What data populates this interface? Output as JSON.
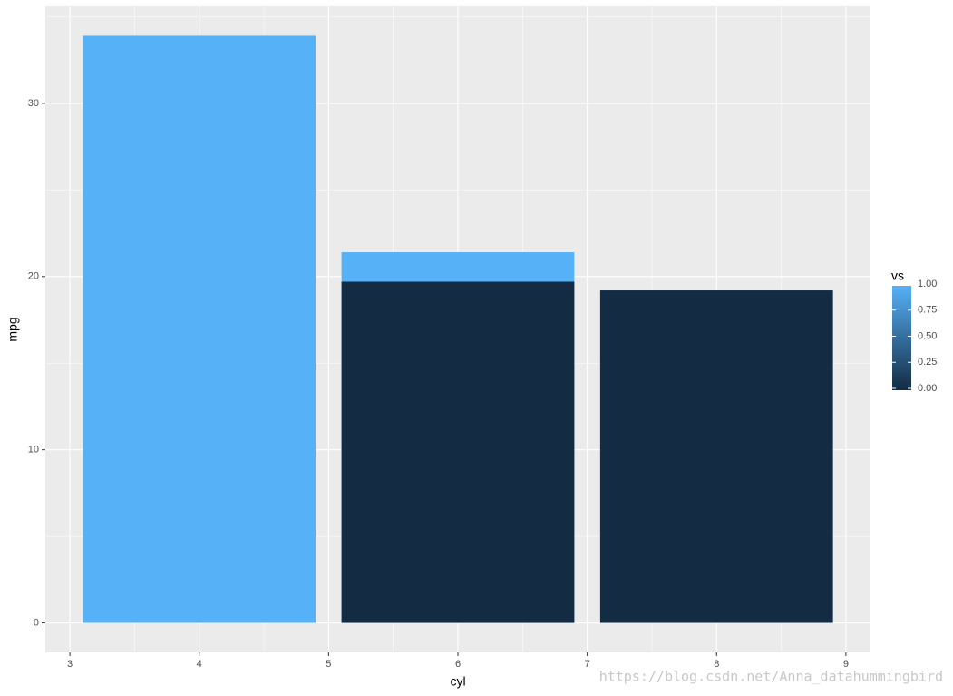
{
  "chart_data": {
    "type": "bar",
    "x_label": "cyl",
    "y_label": "mpg",
    "x": [
      4,
      6,
      6,
      8
    ],
    "values": [
      33.9,
      21.4,
      19.7,
      19.2
    ],
    "color_values": [
      1,
      1,
      0,
      0
    ],
    "xlim": [
      2.81,
      9.19
    ],
    "xticks": [
      3,
      4,
      5,
      6,
      7,
      8,
      9
    ],
    "ylim": [
      -1.7,
      35.6
    ],
    "yticks": [
      0,
      10,
      20,
      30
    ],
    "grid": true,
    "color_scale": {
      "title": "vs",
      "low": "#132B43",
      "high": "#56B1F7",
      "lim": [
        0,
        1
      ],
      "ticks": [
        {
          "value": 0,
          "label": "0.00"
        },
        {
          "value": 0.25,
          "label": "0.25"
        },
        {
          "value": 0.5,
          "label": "0.50"
        },
        {
          "value": 0.75,
          "label": "0.75"
        },
        {
          "value": 1,
          "label": "1.00"
        }
      ]
    },
    "watermark": "https://blog.csdn.net/Anna_datahummingbird"
  }
}
